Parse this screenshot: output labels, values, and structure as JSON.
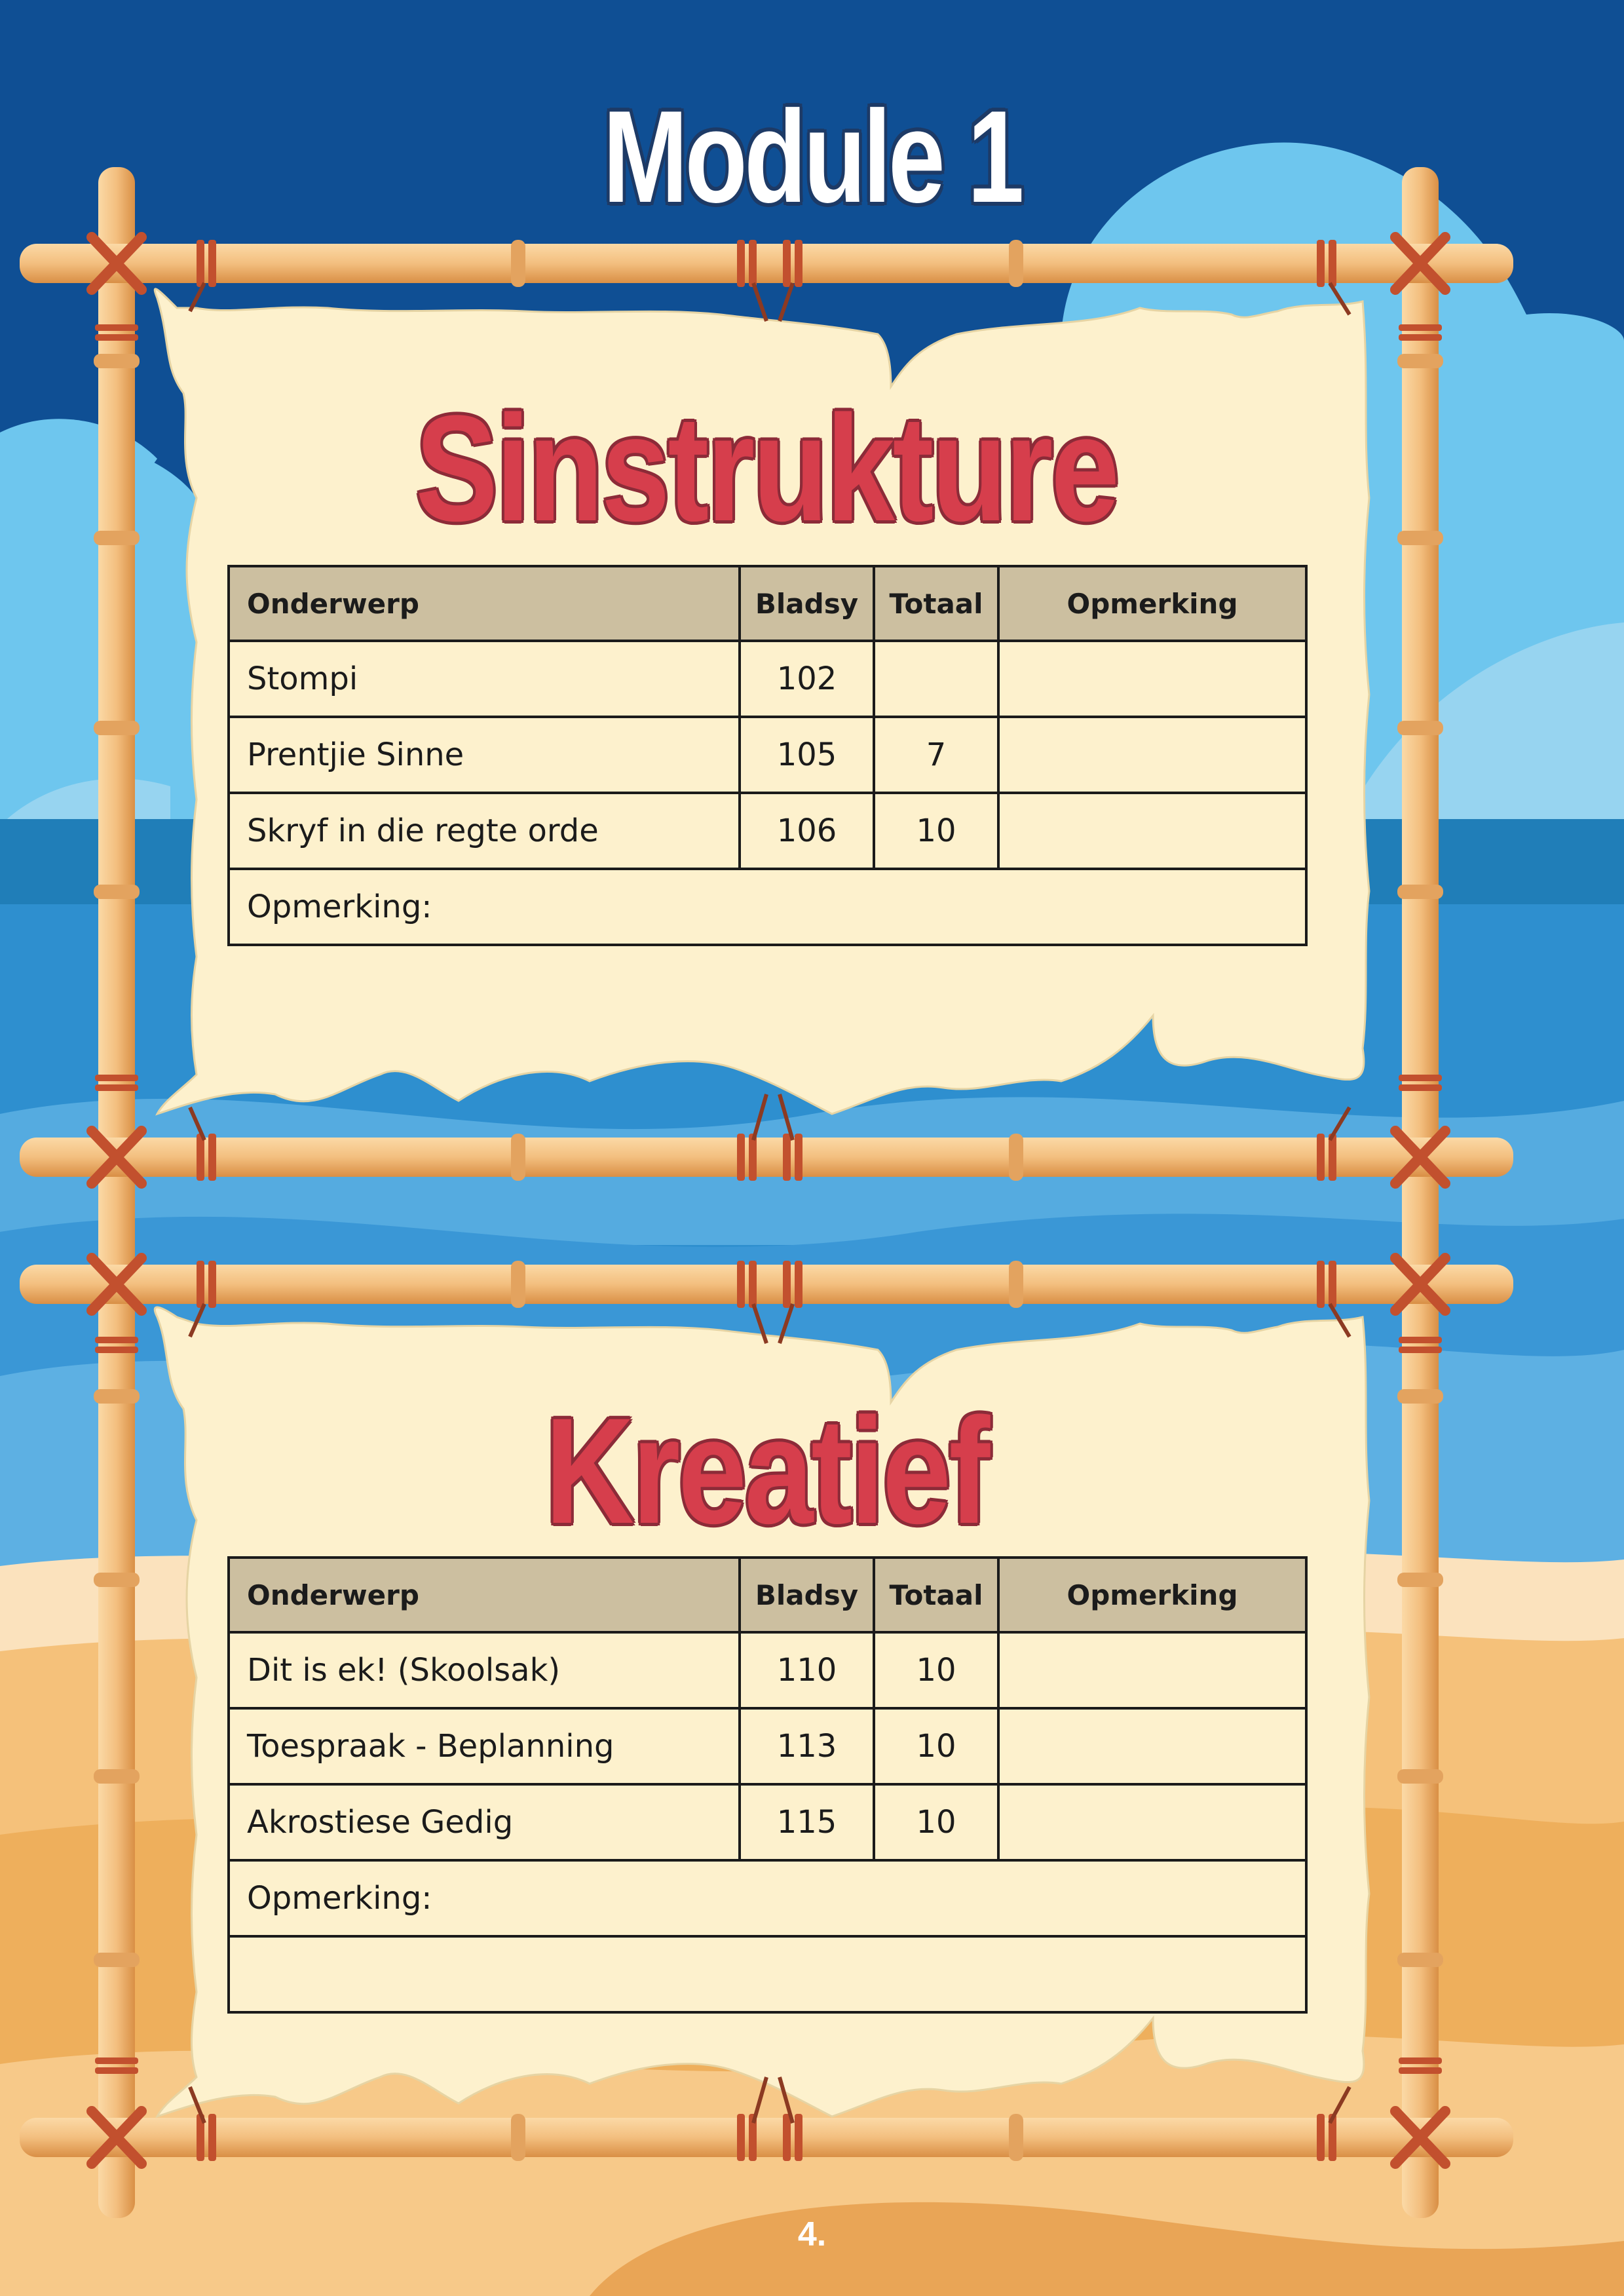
{
  "page": {
    "title": "Module 1",
    "page_number": "4."
  },
  "sections": [
    {
      "title": "Sinstrukture",
      "headers": {
        "onderwerp": "Onderwerp",
        "bladsy": "Bladsy",
        "totaal": "Totaal",
        "opmerking": "Opmerking"
      },
      "rows": [
        {
          "onderwerp": "Stompi",
          "bladsy": "102",
          "totaal": "",
          "opmerking": ""
        },
        {
          "onderwerp": "Prentjie Sinne",
          "bladsy": "105",
          "totaal": "7",
          "opmerking": ""
        },
        {
          "onderwerp": "Skryf in die regte orde",
          "bladsy": "106",
          "totaal": "10",
          "opmerking": ""
        }
      ],
      "note_label": "Opmerking:"
    },
    {
      "title": "Kreatief",
      "headers": {
        "onderwerp": "Onderwerp",
        "bladsy": "Bladsy",
        "totaal": "Totaal",
        "opmerking": "Opmerking"
      },
      "rows": [
        {
          "onderwerp": "Dit is ek! (Skoolsak)",
          "bladsy": "110",
          "totaal": "10",
          "opmerking": ""
        },
        {
          "onderwerp": "Toespraak - Beplanning",
          "bladsy": "113",
          "totaal": "10",
          "opmerking": ""
        },
        {
          "onderwerp": "Akrostiese Gedig",
          "bladsy": "115",
          "totaal": "10",
          "opmerking": ""
        }
      ],
      "note_label": "Opmerking:"
    }
  ],
  "colors": {
    "sky_dark": "#0f4f94",
    "sky_light": "#6ec6ee",
    "sea": "#2a89c8",
    "sand": "#f2b868",
    "parchment": "#fdf1cd",
    "header_fill": "#ccbfa0",
    "bamboo": "#f6c68a",
    "rope": "#c2502e",
    "title_red": "#d63e4c"
  }
}
